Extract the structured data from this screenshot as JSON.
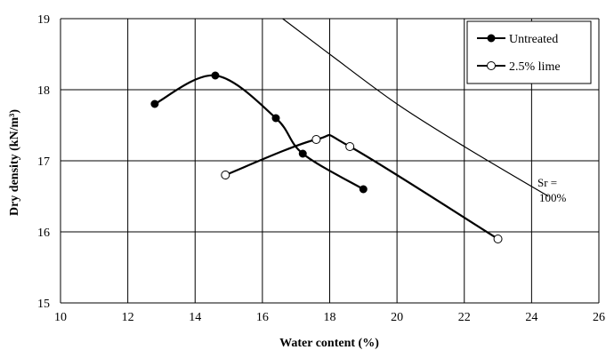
{
  "chart_data": {
    "type": "line",
    "title": "",
    "xlabel": "Water content (%)",
    "ylabel": "Dry density (kN/m³)",
    "xlim": [
      10,
      26
    ],
    "ylim": [
      15,
      19
    ],
    "xticks": [
      "10",
      "12",
      "14",
      "16",
      "18",
      "20",
      "22",
      "24",
      "26"
    ],
    "yticks": [
      "15",
      "16",
      "17",
      "18",
      "19"
    ],
    "grid": true,
    "legend_position": "top-right",
    "series": [
      {
        "name": "Untreated",
        "marker": "filled-circle",
        "color": "#000000",
        "points": [
          [
            12.8,
            17.8
          ],
          [
            14.6,
            18.2
          ],
          [
            16.4,
            17.6
          ],
          [
            17.2,
            17.1
          ],
          [
            19.0,
            16.6
          ]
        ]
      },
      {
        "name": "2.5% lime",
        "marker": "open-circle",
        "color": "#000000",
        "points": [
          [
            14.9,
            16.8
          ],
          [
            17.6,
            17.3
          ],
          [
            18.6,
            17.2
          ],
          [
            23.0,
            15.9
          ]
        ]
      }
    ],
    "saturation_line": {
      "label_line1": "Sr =",
      "label_line2": "100%",
      "points": [
        [
          16.6,
          19.0
        ],
        [
          18.0,
          18.5
        ],
        [
          20.0,
          17.8
        ],
        [
          22.0,
          17.2
        ],
        [
          24.5,
          16.5
        ]
      ]
    }
  }
}
